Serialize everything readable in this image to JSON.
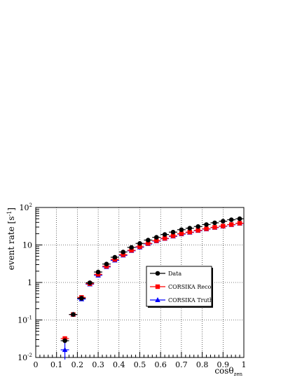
{
  "chart_data": {
    "type": "scatter",
    "title": "",
    "xlabel": "cosθ",
    "xlabel_sub": "zen",
    "ylabel": "event rate [s",
    "ylabel_sup": "-1",
    "ylabel_close": "]",
    "xlim": [
      0,
      1
    ],
    "ylim": [
      0.01,
      100
    ],
    "yscale": "log",
    "grid": true,
    "legend_position": "center-right",
    "x_ticks": [
      {
        "value": 0,
        "label": "0"
      },
      {
        "value": 0.1,
        "label": "0.1"
      },
      {
        "value": 0.2,
        "label": "0.2"
      },
      {
        "value": 0.3,
        "label": "0.3"
      },
      {
        "value": 0.4,
        "label": "0.4"
      },
      {
        "value": 0.5,
        "label": "0.5"
      },
      {
        "value": 0.6,
        "label": "0.6"
      },
      {
        "value": 0.7,
        "label": "0.7"
      },
      {
        "value": 0.8,
        "label": "0.8"
      },
      {
        "value": 0.9,
        "label": "0.9"
      },
      {
        "value": 1,
        "label": "1"
      }
    ],
    "y_ticks": [
      {
        "value": 0.01,
        "base": "10",
        "exp": "-2"
      },
      {
        "value": 0.1,
        "base": "10",
        "exp": "-1"
      },
      {
        "value": 1,
        "base": "1",
        "exp": ""
      },
      {
        "value": 10,
        "base": "10",
        "exp": ""
      },
      {
        "value": 100,
        "base": "10",
        "exp": "2"
      }
    ],
    "x": [
      0.14,
      0.18,
      0.22,
      0.26,
      0.3,
      0.34,
      0.38,
      0.42,
      0.46,
      0.5,
      0.54,
      0.58,
      0.62,
      0.66,
      0.7,
      0.74,
      0.78,
      0.82,
      0.86,
      0.9,
      0.94,
      0.98
    ],
    "x_err": 0.02,
    "series": [
      {
        "name": "Data",
        "color": "#000000",
        "marker": "circle",
        "values": [
          0.028,
          0.14,
          0.38,
          0.98,
          1.9,
          3.1,
          4.7,
          6.5,
          8.6,
          11,
          13.5,
          16,
          19,
          22,
          25.5,
          28,
          31,
          35,
          39,
          43,
          47,
          50
        ]
      },
      {
        "name": "CORSIKA Reco",
        "color": "#ff0000",
        "marker": "square",
        "values": [
          0.032,
          0.14,
          0.4,
          0.93,
          1.65,
          2.7,
          4.1,
          5.5,
          7.2,
          9.0,
          11,
          13,
          15,
          17.5,
          20,
          22,
          24.5,
          27,
          29.5,
          32,
          35,
          38
        ]
      },
      {
        "name": "CORSIKA Truth",
        "color": "#0000ff",
        "marker": "triangle",
        "values": [
          0.016,
          0.14,
          0.36,
          0.9,
          1.55,
          2.6,
          3.9,
          5.3,
          7.0,
          8.7,
          10.7,
          12.7,
          14.7,
          17,
          19.5,
          21.5,
          24,
          26.5,
          29,
          31.5,
          34.5,
          37.5
        ]
      }
    ]
  }
}
